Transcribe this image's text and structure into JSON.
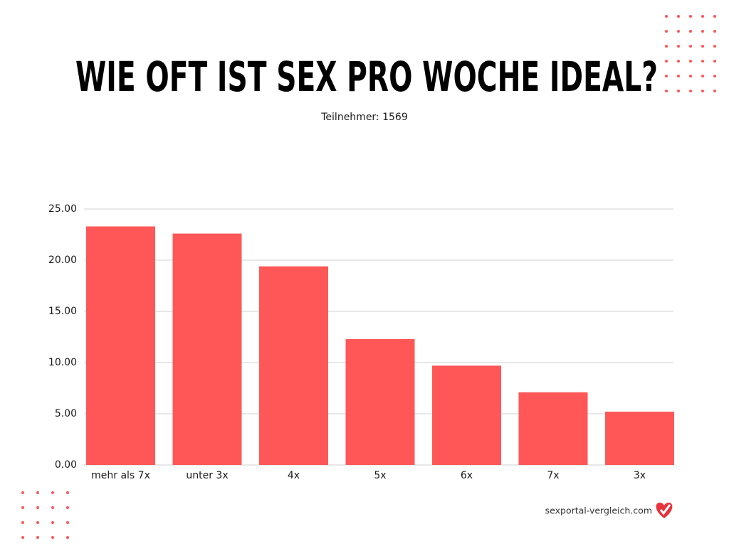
{
  "chart_data": {
    "type": "bar",
    "title": "WIE OFT IST SEX PRO WOCHE IDEAL?",
    "subtitle": "Teilnehmer: 1569",
    "categories": [
      "mehr als 7x",
      "unter 3x",
      "4x",
      "5x",
      "6x",
      "7x",
      "3x"
    ],
    "values": [
      23.3,
      22.6,
      19.4,
      12.3,
      9.7,
      7.1,
      5.2
    ],
    "color": "#ff5757",
    "ylim": [
      0,
      25
    ],
    "yticks": [
      {
        "value": 0,
        "label": "0.00"
      },
      {
        "value": 5,
        "label": "5.00"
      },
      {
        "value": 10,
        "label": "10.00"
      },
      {
        "value": 15,
        "label": "15.00"
      },
      {
        "value": 20,
        "label": "20.00"
      },
      {
        "value": 25,
        "label": "25.00"
      }
    ],
    "grid": true,
    "footer": "sexportal-vergleich.com"
  }
}
